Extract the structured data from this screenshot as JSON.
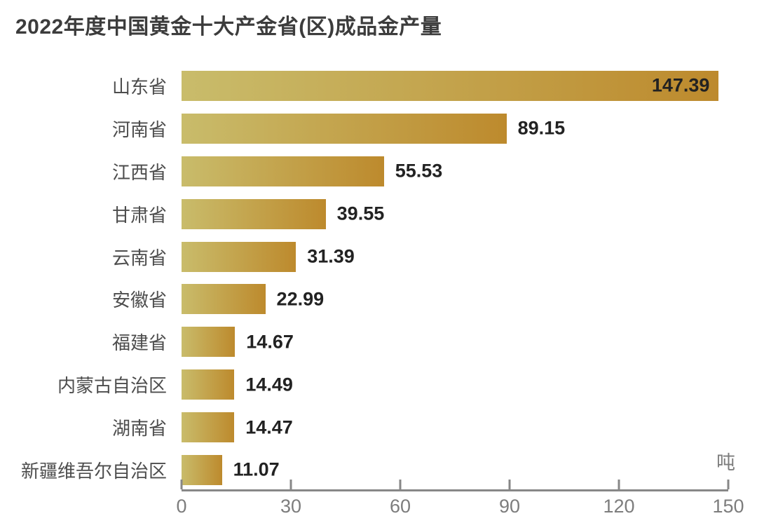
{
  "title": "2022年度中国黄金十大产金省(区)成品金产量",
  "unit_label": "吨",
  "chart_data": {
    "type": "bar",
    "orientation": "horizontal",
    "title": "2022年度中国黄金十大产金省(区)成品金产量",
    "categories": [
      "山东省",
      "河南省",
      "江西省",
      "甘肃省",
      "云南省",
      "安徽省",
      "福建省",
      "内蒙古自治区",
      "湖南省",
      "新疆维吾尔自治区"
    ],
    "values": [
      147.39,
      89.15,
      55.53,
      39.55,
      31.39,
      22.99,
      14.67,
      14.49,
      14.47,
      11.07
    ],
    "value_decimals": 2,
    "xlabel": "吨",
    "ylabel": "",
    "xlim": [
      0,
      150
    ],
    "x_ticks": [
      0,
      30,
      60,
      90,
      120,
      150
    ],
    "grid": false,
    "legend": false,
    "value_labels": "right-of-bar, inside bar when bar nearly full width"
  },
  "colors": {
    "background": "#ffffff",
    "title": "#3c3c3c",
    "category_label": "#4d4d4d",
    "value_label": "#222222",
    "axis": "#878787",
    "tick_label": "#7d7d7d",
    "bar_gradient_start": "#c9bc6b",
    "bar_gradient_end": "#bd8a2d"
  }
}
